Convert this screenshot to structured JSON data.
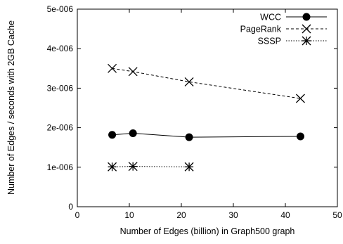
{
  "chart_data": {
    "type": "line",
    "title": "",
    "xlabel": "Number of Edges (billion) in Graph500 graph",
    "ylabel": "Number of Edges / seconds with 2GB Cache",
    "xlim": [
      0,
      50
    ],
    "ylim": [
      0,
      5e-06
    ],
    "xticks": [
      0,
      10,
      20,
      30,
      40,
      50
    ],
    "xtick_labels": [
      "0",
      "10",
      "20",
      "30",
      "40",
      "50"
    ],
    "yticks": [
      0,
      1e-06,
      2e-06,
      3e-06,
      4e-06,
      5e-06
    ],
    "ytick_labels": [
      "0",
      "1e-006",
      "2e-006",
      "3e-006",
      "4e-006",
      "5e-006"
    ],
    "grid": false,
    "legend_position": "top-right",
    "series": [
      {
        "name": "WCC",
        "marker": "filled-circle",
        "line_style": "solid",
        "x": [
          6.7,
          10.7,
          21.5,
          42.9
        ],
        "y": [
          1.82e-06,
          1.86e-06,
          1.76e-06,
          1.78e-06
        ]
      },
      {
        "name": "PageRank",
        "marker": "x-cross",
        "line_style": "dashed",
        "x": [
          6.7,
          10.7,
          21.5,
          42.9
        ],
        "y": [
          3.5e-06,
          3.42e-06,
          3.16e-06,
          2.74e-06
        ]
      },
      {
        "name": "SSSP",
        "marker": "star",
        "line_style": "dotted",
        "x": [
          6.7,
          10.7,
          21.5
        ],
        "y": [
          1.01e-06,
          1.02e-06,
          1.01e-06
        ]
      }
    ]
  }
}
